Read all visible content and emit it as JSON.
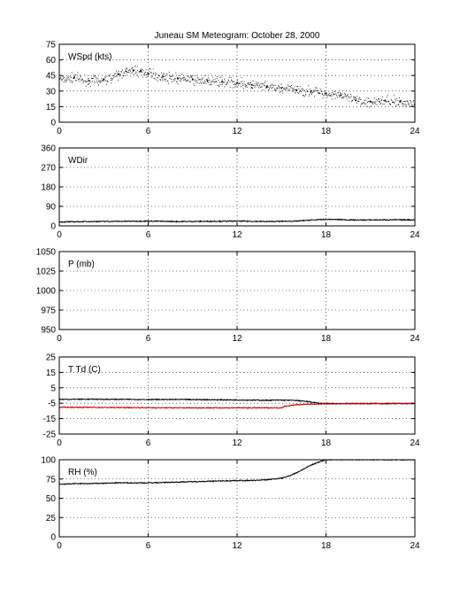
{
  "title": "Juneau SM Meteogram:    October 28, 2000",
  "chart_data": [
    {
      "type": "scatter",
      "label": "WSpd (kts)",
      "xlim": [
        0,
        24
      ],
      "ylim": [
        0,
        75
      ],
      "xticks": [
        0,
        6,
        12,
        18,
        24
      ],
      "yticks": [
        0,
        15,
        30,
        45,
        60,
        75
      ],
      "grid": true,
      "series": [
        {
          "color": "#000000",
          "x": [
            0,
            1,
            2,
            3,
            4,
            4.5,
            5,
            5.5,
            6,
            7,
            8,
            9,
            10,
            11,
            12,
            13,
            14,
            15,
            16,
            17,
            18,
            19,
            20,
            21,
            22,
            23,
            24
          ],
          "values": [
            42,
            43,
            40,
            41,
            46,
            49,
            50,
            49,
            47,
            44,
            42,
            41,
            40,
            39,
            38,
            36,
            34,
            33,
            31,
            30,
            28,
            26,
            21,
            20,
            21,
            20,
            17
          ]
        }
      ]
    },
    {
      "type": "line",
      "label": "WDir",
      "xlim": [
        0,
        24
      ],
      "ylim": [
        0,
        360
      ],
      "xticks": [
        0,
        6,
        12,
        18,
        24
      ],
      "yticks": [
        0,
        90,
        180,
        270,
        360
      ],
      "grid": true,
      "series": [
        {
          "color": "#000000",
          "x": [
            0,
            2,
            4,
            6,
            8,
            10,
            12,
            14,
            16,
            17,
            18,
            19,
            20,
            22,
            24
          ],
          "values": [
            18,
            20,
            21,
            22,
            20,
            21,
            22,
            20,
            22,
            27,
            30,
            29,
            27,
            28,
            28
          ]
        }
      ]
    },
    {
      "type": "line",
      "label": "P (mb)",
      "xlim": [
        0,
        24
      ],
      "ylim": [
        950,
        1050
      ],
      "xticks": [
        0,
        6,
        12,
        18,
        24
      ],
      "yticks": [
        950,
        975,
        1000,
        1025,
        1050
      ],
      "grid": true,
      "series": []
    },
    {
      "type": "line",
      "label": "T Td (C)",
      "xlim": [
        0,
        24
      ],
      "ylim": [
        -25,
        25
      ],
      "xticks": [
        0,
        6,
        12,
        18,
        24
      ],
      "yticks": [
        -25,
        -15,
        -5,
        5,
        15,
        25
      ],
      "grid": true,
      "series": [
        {
          "color": "#000000",
          "x": [
            0,
            2,
            4,
            6,
            8,
            10,
            12,
            14,
            15,
            16,
            17,
            17.5,
            18,
            20,
            22,
            24
          ],
          "values": [
            -2.5,
            -2.4,
            -2.5,
            -2.6,
            -2.6,
            -2.7,
            -2.9,
            -3.1,
            -3.0,
            -3.2,
            -4.2,
            -5.0,
            -5.2,
            -5.2,
            -5.2,
            -5.2
          ]
        },
        {
          "color": "#cc0000",
          "x": [
            0,
            2,
            4,
            6,
            8,
            10,
            12,
            14,
            15,
            15.2,
            16,
            17,
            18,
            20,
            22,
            24
          ],
          "values": [
            -7.6,
            -7.7,
            -7.8,
            -7.9,
            -8.0,
            -8.0,
            -8.0,
            -8.0,
            -8.0,
            -7.0,
            -6.0,
            -5.6,
            -5.4,
            -5.3,
            -5.3,
            -5.2
          ]
        }
      ]
    },
    {
      "type": "line",
      "label": "RH (%)",
      "xlim": [
        0,
        24
      ],
      "ylim": [
        0,
        100
      ],
      "xticks": [
        0,
        6,
        12,
        18,
        24
      ],
      "yticks": [
        0,
        25,
        50,
        75,
        100
      ],
      "grid": true,
      "series": [
        {
          "color": "#000000",
          "x": [
            0,
            1,
            2,
            4,
            6,
            8,
            10,
            12,
            13,
            14,
            15,
            15.5,
            16,
            16.5,
            17,
            17.5,
            18,
            20,
            22,
            24
          ],
          "values": [
            68,
            69,
            69,
            70,
            70,
            71,
            72,
            73,
            73,
            74,
            76,
            79,
            83,
            88,
            93,
            97,
            100,
            100,
            100,
            100
          ]
        }
      ]
    }
  ]
}
